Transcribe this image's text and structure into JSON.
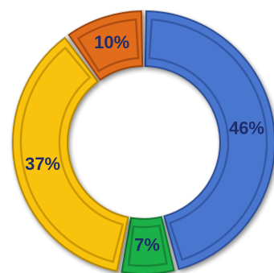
{
  "chart_data": {
    "type": "pie",
    "variant": "donut",
    "title": "",
    "slices": [
      {
        "value": 46,
        "label": "46%",
        "color": "#4a77cf",
        "edge": "#2d4f99"
      },
      {
        "value": 7,
        "label": "7%",
        "color": "#1fb04a",
        "edge": "#137a30"
      },
      {
        "value": 37,
        "label": "37%",
        "color": "#f9c20a",
        "edge": "#b88a00"
      },
      {
        "value": 10,
        "label": "10%",
        "color": "#e06c1a",
        "edge": "#9e4410"
      }
    ],
    "legend": "none"
  }
}
